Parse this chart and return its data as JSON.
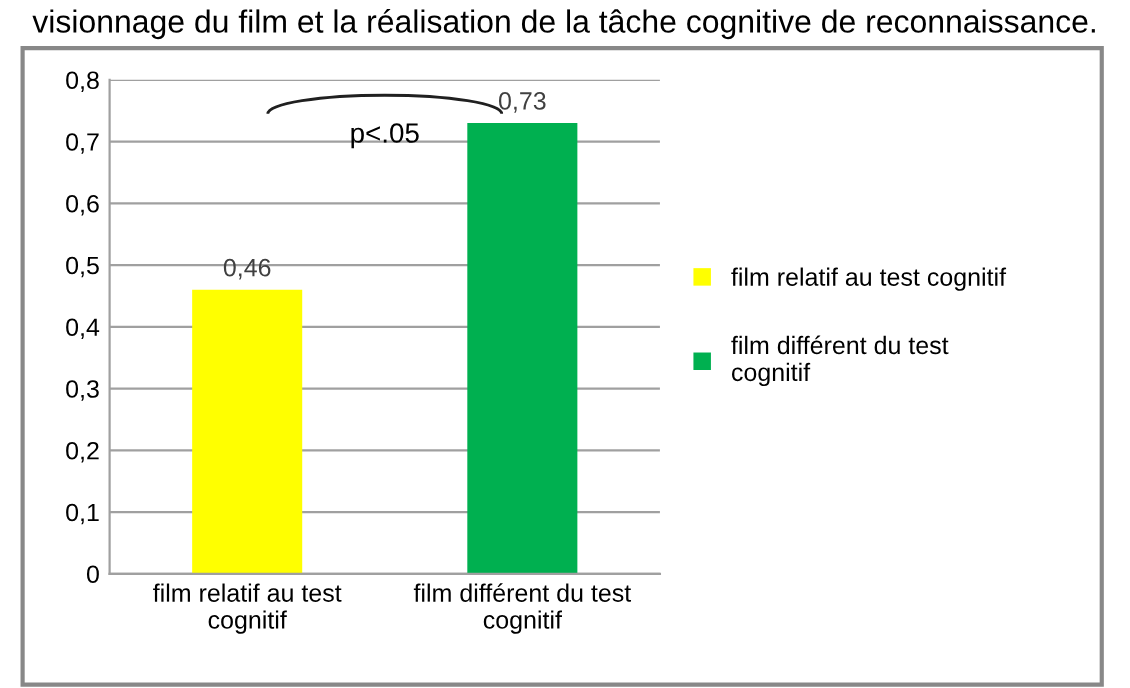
{
  "chart_data": {
    "type": "bar",
    "title": "visionnage du film et la réalisation de la tâche cognitive de reconnaissance.",
    "categories": [
      "film relatif au test\ncognitif",
      "film différent du test\ncognitif"
    ],
    "series": [
      {
        "name": "film relatif au test cognitif",
        "color": "#ffff00",
        "values": [
          0.46,
          null
        ],
        "value_labels": [
          "0,46",
          null
        ]
      },
      {
        "name": "film différent du test\ncognitif",
        "color": "#00b050",
        "values": [
          null,
          0.73
        ],
        "value_labels": [
          null,
          "0,73"
        ]
      }
    ],
    "ylim": [
      0,
      0.8
    ],
    "yticks": [
      0,
      {
        "value": 0.1,
        "label": "0,1"
      },
      {
        "value": 0.2,
        "label": "0,2"
      },
      {
        "value": 0.3,
        "label": "0,3"
      },
      {
        "value": 0.4,
        "label": "0,4"
      },
      {
        "value": 0.5,
        "label": "0,5"
      },
      {
        "value": 0.6,
        "label": "0,6"
      },
      {
        "value": 0.7,
        "label": "0,7"
      },
      {
        "value": 0.8,
        "label": "0,8"
      }
    ],
    "grid": "y",
    "legend": "right",
    "annotations": [
      "p<.05"
    ]
  }
}
